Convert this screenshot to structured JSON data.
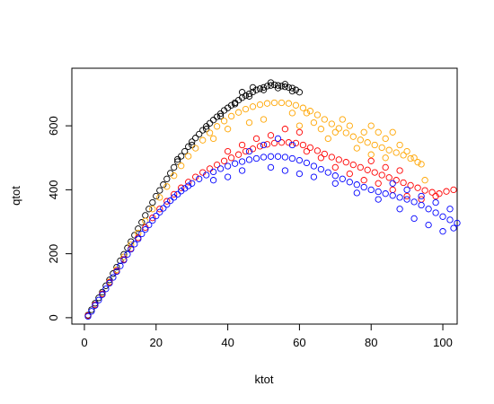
{
  "chart_data": {
    "type": "scatter",
    "title": "",
    "xlabel": "ktot",
    "ylabel": "qtot",
    "xlim": [
      -3.5,
      104
    ],
    "ylim": [
      -20,
      780
    ],
    "x_ticks": [
      0,
      20,
      40,
      60,
      80,
      100
    ],
    "y_ticks": [
      0,
      200,
      400,
      600
    ],
    "grid": false,
    "legend": "none",
    "marker": "open-circle",
    "series": [
      {
        "color": "#000000",
        "points": [
          [
            1,
            8
          ],
          [
            2,
            25
          ],
          [
            3,
            45
          ],
          [
            4,
            62
          ],
          [
            5,
            80
          ],
          [
            6,
            100
          ],
          [
            7,
            118
          ],
          [
            8,
            138
          ],
          [
            9,
            158
          ],
          [
            10,
            178
          ],
          [
            11,
            198
          ],
          [
            12,
            218
          ],
          [
            13,
            238
          ],
          [
            14,
            258
          ],
          [
            15,
            278
          ],
          [
            16,
            298
          ],
          [
            17,
            320
          ],
          [
            18,
            340
          ],
          [
            19,
            360
          ],
          [
            20,
            380
          ],
          [
            21,
            398
          ],
          [
            22,
            416
          ],
          [
            23,
            434
          ],
          [
            24,
            452
          ],
          [
            25,
            470
          ],
          [
            26,
            488
          ],
          [
            27,
            505
          ],
          [
            28,
            520
          ],
          [
            29,
            535
          ],
          [
            30,
            550
          ],
          [
            31,
            562
          ],
          [
            32,
            574
          ],
          [
            33,
            586
          ],
          [
            34,
            598
          ],
          [
            35,
            608
          ],
          [
            36,
            618
          ],
          [
            37,
            628
          ],
          [
            38,
            638
          ],
          [
            39,
            648
          ],
          [
            40,
            656
          ],
          [
            41,
            664
          ],
          [
            42,
            672
          ],
          [
            43,
            680
          ],
          [
            44,
            688
          ],
          [
            45,
            694
          ],
          [
            46,
            700
          ],
          [
            47,
            706
          ],
          [
            48,
            712
          ],
          [
            49,
            716
          ],
          [
            50,
            720
          ],
          [
            51,
            724
          ],
          [
            52,
            726
          ],
          [
            53,
            728
          ],
          [
            54,
            726
          ],
          [
            55,
            724
          ],
          [
            56,
            722
          ],
          [
            57,
            720
          ],
          [
            58,
            718
          ],
          [
            59,
            712
          ],
          [
            60,
            705
          ],
          [
            26,
            495
          ],
          [
            30,
            540
          ],
          [
            34,
            590
          ],
          [
            38,
            630
          ],
          [
            42,
            668
          ],
          [
            46,
            692
          ],
          [
            50,
            712
          ],
          [
            54,
            718
          ],
          [
            58,
            708
          ],
          [
            47,
            720
          ],
          [
            52,
            735
          ],
          [
            56,
            730
          ],
          [
            44,
            705
          ]
        ]
      },
      {
        "color": "#ffa500",
        "points": [
          [
            1,
            6
          ],
          [
            3,
            40
          ],
          [
            5,
            75
          ],
          [
            7,
            112
          ],
          [
            9,
            150
          ],
          [
            11,
            190
          ],
          [
            13,
            228
          ],
          [
            15,
            265
          ],
          [
            17,
            302
          ],
          [
            19,
            340
          ],
          [
            21,
            376
          ],
          [
            23,
            410
          ],
          [
            25,
            444
          ],
          [
            27,
            475
          ],
          [
            29,
            505
          ],
          [
            31,
            530
          ],
          [
            33,
            555
          ],
          [
            35,
            578
          ],
          [
            37,
            598
          ],
          [
            39,
            615
          ],
          [
            41,
            630
          ],
          [
            43,
            642
          ],
          [
            45,
            652
          ],
          [
            47,
            660
          ],
          [
            49,
            666
          ],
          [
            51,
            670
          ],
          [
            53,
            672
          ],
          [
            55,
            672
          ],
          [
            57,
            670
          ],
          [
            59,
            664
          ],
          [
            61,
            656
          ],
          [
            63,
            646
          ],
          [
            65,
            634
          ],
          [
            67,
            620
          ],
          [
            69,
            606
          ],
          [
            71,
            592
          ],
          [
            73,
            578
          ],
          [
            75,
            566
          ],
          [
            77,
            556
          ],
          [
            79,
            548
          ],
          [
            81,
            540
          ],
          [
            83,
            532
          ],
          [
            85,
            524
          ],
          [
            87,
            516
          ],
          [
            89,
            508
          ],
          [
            91,
            498
          ],
          [
            93,
            486
          ],
          [
            60,
            600
          ],
          [
            62,
            640
          ],
          [
            64,
            610
          ],
          [
            66,
            590
          ],
          [
            70,
            580
          ],
          [
            74,
            600
          ],
          [
            78,
            580
          ],
          [
            80,
            600
          ],
          [
            82,
            580
          ],
          [
            84,
            560
          ],
          [
            86,
            580
          ],
          [
            88,
            540
          ],
          [
            90,
            520
          ],
          [
            92,
            500
          ],
          [
            94,
            480
          ],
          [
            95,
            430
          ],
          [
            76,
            530
          ],
          [
            80,
            510
          ],
          [
            84,
            500
          ],
          [
            72,
            620
          ],
          [
            68,
            560
          ],
          [
            58,
            640
          ],
          [
            50,
            620
          ],
          [
            46,
            610
          ],
          [
            40,
            590
          ],
          [
            36,
            560
          ]
        ]
      },
      {
        "color": "#ff0000",
        "points": [
          [
            1,
            6
          ],
          [
            3,
            40
          ],
          [
            5,
            74
          ],
          [
            7,
            110
          ],
          [
            9,
            146
          ],
          [
            11,
            182
          ],
          [
            13,
            216
          ],
          [
            15,
            250
          ],
          [
            17,
            282
          ],
          [
            19,
            312
          ],
          [
            21,
            340
          ],
          [
            23,
            364
          ],
          [
            25,
            386
          ],
          [
            27,
            406
          ],
          [
            29,
            424
          ],
          [
            31,
            440
          ],
          [
            33,
            454
          ],
          [
            35,
            466
          ],
          [
            37,
            478
          ],
          [
            39,
            490
          ],
          [
            41,
            500
          ],
          [
            43,
            510
          ],
          [
            45,
            520
          ],
          [
            47,
            528
          ],
          [
            49,
            536
          ],
          [
            51,
            542
          ],
          [
            53,
            546
          ],
          [
            55,
            548
          ],
          [
            57,
            548
          ],
          [
            59,
            546
          ],
          [
            61,
            540
          ],
          [
            63,
            532
          ],
          [
            65,
            522
          ],
          [
            67,
            512
          ],
          [
            69,
            502
          ],
          [
            71,
            494
          ],
          [
            73,
            486
          ],
          [
            75,
            478
          ],
          [
            77,
            470
          ],
          [
            79,
            462
          ],
          [
            81,
            454
          ],
          [
            83,
            446
          ],
          [
            85,
            438
          ],
          [
            87,
            430
          ],
          [
            89,
            422
          ],
          [
            91,
            414
          ],
          [
            93,
            406
          ],
          [
            95,
            398
          ],
          [
            97,
            392
          ],
          [
            99,
            388
          ],
          [
            101,
            395
          ],
          [
            103,
            400
          ],
          [
            60,
            580
          ],
          [
            56,
            590
          ],
          [
            52,
            570
          ],
          [
            48,
            560
          ],
          [
            62,
            520
          ],
          [
            66,
            500
          ],
          [
            70,
            470
          ],
          [
            74,
            450
          ],
          [
            78,
            430
          ],
          [
            82,
            420
          ],
          [
            86,
            400
          ],
          [
            90,
            380
          ],
          [
            94,
            370
          ],
          [
            98,
            380
          ],
          [
            88,
            460
          ],
          [
            84,
            470
          ],
          [
            80,
            490
          ],
          [
            44,
            540
          ],
          [
            40,
            520
          ]
        ]
      },
      {
        "color": "#0000ff",
        "points": [
          [
            1,
            4
          ],
          [
            2,
            20
          ],
          [
            3,
            38
          ],
          [
            4,
            55
          ],
          [
            5,
            72
          ],
          [
            6,
            90
          ],
          [
            7,
            108
          ],
          [
            8,
            126
          ],
          [
            9,
            144
          ],
          [
            10,
            162
          ],
          [
            11,
            180
          ],
          [
            12,
            198
          ],
          [
            13,
            214
          ],
          [
            14,
            230
          ],
          [
            15,
            246
          ],
          [
            16,
            262
          ],
          [
            17,
            276
          ],
          [
            18,
            290
          ],
          [
            19,
            304
          ],
          [
            20,
            318
          ],
          [
            21,
            330
          ],
          [
            22,
            342
          ],
          [
            23,
            354
          ],
          [
            24,
            366
          ],
          [
            25,
            376
          ],
          [
            26,
            386
          ],
          [
            27,
            396
          ],
          [
            28,
            404
          ],
          [
            29,
            412
          ],
          [
            30,
            420
          ],
          [
            32,
            434
          ],
          [
            34,
            446
          ],
          [
            36,
            456
          ],
          [
            38,
            466
          ],
          [
            40,
            474
          ],
          [
            42,
            482
          ],
          [
            44,
            488
          ],
          [
            46,
            494
          ],
          [
            48,
            498
          ],
          [
            50,
            502
          ],
          [
            52,
            504
          ],
          [
            54,
            504
          ],
          [
            56,
            502
          ],
          [
            58,
            498
          ],
          [
            60,
            492
          ],
          [
            62,
            484
          ],
          [
            64,
            474
          ],
          [
            66,
            464
          ],
          [
            68,
            454
          ],
          [
            70,
            444
          ],
          [
            72,
            434
          ],
          [
            74,
            424
          ],
          [
            76,
            416
          ],
          [
            78,
            408
          ],
          [
            80,
            400
          ],
          [
            82,
            394
          ],
          [
            84,
            388
          ],
          [
            86,
            382
          ],
          [
            88,
            376
          ],
          [
            90,
            370
          ],
          [
            92,
            362
          ],
          [
            94,
            352
          ],
          [
            96,
            340
          ],
          [
            98,
            328
          ],
          [
            100,
            316
          ],
          [
            102,
            306
          ],
          [
            104,
            296
          ],
          [
            50,
            540
          ],
          [
            54,
            560
          ],
          [
            58,
            540
          ],
          [
            52,
            470
          ],
          [
            56,
            460
          ],
          [
            60,
            450
          ],
          [
            64,
            440
          ],
          [
            70,
            420
          ],
          [
            76,
            390
          ],
          [
            82,
            370
          ],
          [
            88,
            340
          ],
          [
            92,
            310
          ],
          [
            96,
            290
          ],
          [
            100,
            270
          ],
          [
            103,
            280
          ],
          [
            86,
            420
          ],
          [
            90,
            400
          ],
          [
            94,
            380
          ],
          [
            98,
            360
          ],
          [
            102,
            340
          ],
          [
            40,
            440
          ],
          [
            36,
            430
          ],
          [
            46,
            520
          ],
          [
            44,
            460
          ]
        ]
      }
    ]
  }
}
